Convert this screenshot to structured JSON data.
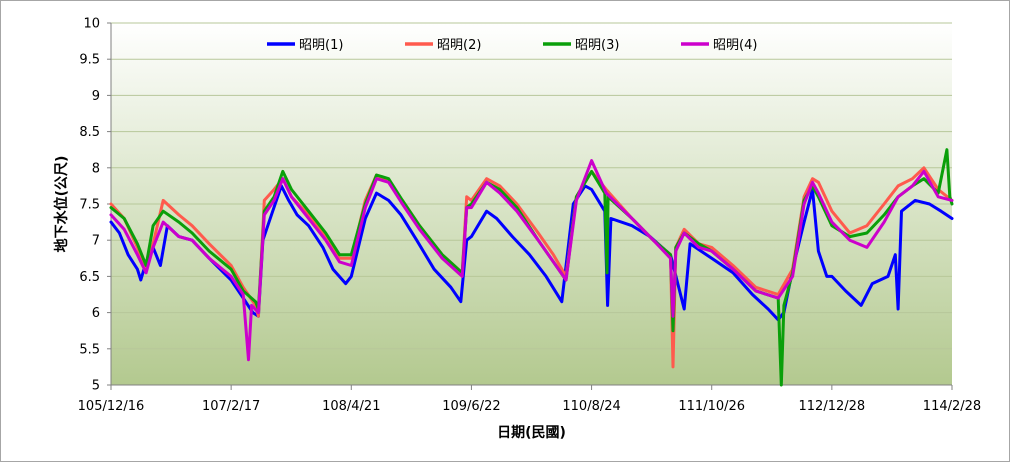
{
  "chart_data": {
    "type": "line",
    "title": "",
    "xlabel": "日期(民國)",
    "ylabel": "地下水位(公尺)",
    "ylim": [
      5,
      10
    ],
    "yticks": [
      5,
      5.5,
      6,
      6.5,
      7,
      7.5,
      8,
      8.5,
      9,
      9.5,
      10
    ],
    "ytick_labels": [
      "5",
      "5.5",
      "6",
      "6.5",
      "7",
      "7.5",
      "8",
      "8.5",
      "9",
      "9.5",
      "10"
    ],
    "x_start": "105/12/16",
    "x_end": "114/2/28",
    "xtick_labels": [
      "105/12/16",
      "107/2/17",
      "108/4/21",
      "109/6/22",
      "110/8/24",
      "111/10/26",
      "112/12/28",
      "114/2/28"
    ],
    "grid": "horizontal",
    "legend_position": "top-center",
    "series": [
      {
        "name": "昭明(1)",
        "color": "#0000ff",
        "points": [
          [
            "105/12/16",
            7.25
          ],
          [
            "106/1/15",
            7.1
          ],
          [
            "106/2/15",
            6.8
          ],
          [
            "106/3/20",
            6.6
          ],
          [
            "106/4/1",
            6.45
          ],
          [
            "106/4/20",
            6.7
          ],
          [
            "106/5/15",
            6.9
          ],
          [
            "106/6/10",
            6.65
          ],
          [
            "106/7/5",
            7.2
          ],
          [
            "106/8/15",
            7.05
          ],
          [
            "106/10/1",
            7.0
          ],
          [
            "106/12/1",
            6.75
          ],
          [
            "107/2/17",
            6.45
          ],
          [
            "107/4/1",
            6.2
          ],
          [
            "107/5/5",
            6.0
          ],
          [
            "107/5/25",
            5.95
          ],
          [
            "107/6/10",
            7.0
          ],
          [
            "107/7/15",
            7.4
          ],
          [
            "107/8/15",
            7.75
          ],
          [
            "107/9/10",
            7.55
          ],
          [
            "107/10/10",
            7.35
          ],
          [
            "107/11/20",
            7.2
          ],
          [
            "108/1/10",
            6.9
          ],
          [
            "108/2/15",
            6.6
          ],
          [
            "108/4/1",
            6.4
          ],
          [
            "108/4/21",
            6.5
          ],
          [
            "108/6/10",
            7.3
          ],
          [
            "108/7/20",
            7.65
          ],
          [
            "108/9/1",
            7.55
          ],
          [
            "108/10/15",
            7.35
          ],
          [
            "108/12/10",
            7.0
          ],
          [
            "109/2/10",
            6.6
          ],
          [
            "109/4/10",
            6.35
          ],
          [
            "109/5/15",
            6.15
          ],
          [
            "109/6/5",
            7.0
          ],
          [
            "109/6/22",
            7.05
          ],
          [
            "109/8/15",
            7.4
          ],
          [
            "109/9/20",
            7.3
          ],
          [
            "109/11/15",
            7.05
          ],
          [
            "110/1/15",
            6.8
          ],
          [
            "110/3/15",
            6.5
          ],
          [
            "110/5/10",
            6.15
          ],
          [
            "110/6/20",
            7.5
          ],
          [
            "110/8/1",
            7.75
          ],
          [
            "110/8/24",
            7.7
          ],
          [
            "110/10/10",
            7.4
          ],
          [
            "110/10/20",
            6.1
          ],
          [
            "110/11/1",
            7.3
          ],
          [
            "111/1/15",
            7.2
          ],
          [
            "111/3/20",
            7.05
          ],
          [
            "111/6/1",
            6.8
          ],
          [
            "111/7/20",
            6.05
          ],
          [
            "111/8/10",
            6.95
          ],
          [
            "111/10/26",
            6.75
          ],
          [
            "112/1/10",
            6.55
          ],
          [
            "112/3/20",
            6.25
          ],
          [
            "112/5/15",
            6.05
          ],
          [
            "112/6/20",
            5.9
          ],
          [
            "112/7/10",
            6.0
          ],
          [
            "112/8/10",
            6.6
          ],
          [
            "112/9/20",
            7.25
          ],
          [
            "112/10/20",
            7.7
          ],
          [
            "112/11/10",
            6.85
          ],
          [
            "112/12/10",
            6.5
          ],
          [
            "112/12/28",
            6.5
          ],
          [
            "113/2/15",
            6.3
          ],
          [
            "113/4/10",
            6.1
          ],
          [
            "113/5/20",
            6.4
          ],
          [
            "113/7/15",
            6.5
          ],
          [
            "113/8/10",
            6.8
          ],
          [
            "113/8/20",
            6.05
          ],
          [
            "113/9/1",
            7.4
          ],
          [
            "113/10/20",
            7.55
          ],
          [
            "113/12/10",
            7.5
          ],
          [
            "114/1/20",
            7.4
          ],
          [
            "114/2/28",
            7.3
          ]
        ]
      },
      {
        "name": "昭明(2)",
        "color": "#ff5a4d",
        "points": [
          [
            "105/12/16",
            7.5
          ],
          [
            "106/2/1",
            7.3
          ],
          [
            "106/3/20",
            6.9
          ],
          [
            "106/4/20",
            6.6
          ],
          [
            "106/5/15",
            6.95
          ],
          [
            "106/6/20",
            7.55
          ],
          [
            "106/8/15",
            7.35
          ],
          [
            "106/10/1",
            7.2
          ],
          [
            "106/12/1",
            6.95
          ],
          [
            "107/2/17",
            6.65
          ],
          [
            "107/4/1",
            6.35
          ],
          [
            "107/5/15",
            6.1
          ],
          [
            "107/5/25",
            5.95
          ],
          [
            "107/6/15",
            7.55
          ],
          [
            "107/7/20",
            7.7
          ],
          [
            "107/8/20",
            7.85
          ],
          [
            "107/9/20",
            7.6
          ],
          [
            "107/11/20",
            7.35
          ],
          [
            "108/1/20",
            7.05
          ],
          [
            "108/3/10",
            6.75
          ],
          [
            "108/4/21",
            6.75
          ],
          [
            "108/6/10",
            7.55
          ],
          [
            "108/7/20",
            7.9
          ],
          [
            "108/9/1",
            7.8
          ],
          [
            "108/10/20",
            7.55
          ],
          [
            "108/12/20",
            7.2
          ],
          [
            "109/3/10",
            6.8
          ],
          [
            "109/5/20",
            6.55
          ],
          [
            "109/6/5",
            7.6
          ],
          [
            "109/6/22",
            7.55
          ],
          [
            "109/8/15",
            7.85
          ],
          [
            "109/10/1",
            7.75
          ],
          [
            "109/12/1",
            7.5
          ],
          [
            "110/2/15",
            7.1
          ],
          [
            "110/4/10",
            6.8
          ],
          [
            "110/5/25",
            6.5
          ],
          [
            "110/7/1",
            7.6
          ],
          [
            "110/8/24",
            7.95
          ],
          [
            "110/10/15",
            7.7
          ],
          [
            "111/1/15",
            7.3
          ],
          [
            "111/4/1",
            7.0
          ],
          [
            "111/6/1",
            6.8
          ],
          [
            "111/6/10",
            5.25
          ],
          [
            "111/6/20",
            6.9
          ],
          [
            "111/7/20",
            7.15
          ],
          [
            "111/9/10",
            6.95
          ],
          [
            "111/10/26",
            6.9
          ],
          [
            "112/1/10",
            6.65
          ],
          [
            "112/4/1",
            6.35
          ],
          [
            "112/6/20",
            6.25
          ],
          [
            "112/8/10",
            6.6
          ],
          [
            "112/9/20",
            7.6
          ],
          [
            "112/10/20",
            7.85
          ],
          [
            "112/11/10",
            7.8
          ],
          [
            "112/12/28",
            7.4
          ],
          [
            "113/3/1",
            7.1
          ],
          [
            "113/5/1",
            7.2
          ],
          [
            "113/7/1",
            7.5
          ],
          [
            "113/8/20",
            7.75
          ],
          [
            "113/10/10",
            7.85
          ],
          [
            "113/11/20",
            8.0
          ],
          [
            "114/1/10",
            7.7
          ],
          [
            "114/2/28",
            7.55
          ]
        ]
      },
      {
        "name": "昭明(3)",
        "color": "#0a9f0a",
        "points": [
          [
            "105/12/16",
            7.45
          ],
          [
            "106/2/1",
            7.3
          ],
          [
            "106/3/20",
            6.95
          ],
          [
            "106/4/20",
            6.65
          ],
          [
            "106/5/15",
            7.2
          ],
          [
            "106/6/20",
            7.4
          ],
          [
            "106/8/15",
            7.25
          ],
          [
            "106/10/1",
            7.1
          ],
          [
            "106/12/1",
            6.85
          ],
          [
            "107/2/17",
            6.6
          ],
          [
            "107/4/1",
            6.3
          ],
          [
            "107/5/15",
            6.15
          ],
          [
            "107/5/25",
            6.05
          ],
          [
            "107/6/15",
            7.4
          ],
          [
            "107/7/20",
            7.6
          ],
          [
            "107/8/20",
            7.95
          ],
          [
            "107/9/20",
            7.7
          ],
          [
            "107/11/20",
            7.4
          ],
          [
            "108/1/20",
            7.1
          ],
          [
            "108/3/10",
            6.8
          ],
          [
            "108/4/21",
            6.8
          ],
          [
            "108/6/10",
            7.5
          ],
          [
            "108/7/20",
            7.9
          ],
          [
            "108/9/1",
            7.85
          ],
          [
            "108/10/20",
            7.55
          ],
          [
            "108/12/20",
            7.2
          ],
          [
            "109/3/10",
            6.8
          ],
          [
            "109/5/20",
            6.55
          ],
          [
            "109/6/5",
            7.45
          ],
          [
            "109/6/22",
            7.5
          ],
          [
            "109/8/15",
            7.8
          ],
          [
            "109/10/1",
            7.7
          ],
          [
            "109/12/1",
            7.45
          ],
          [
            "110/2/15",
            7.0
          ],
          [
            "110/4/10",
            6.7
          ],
          [
            "110/5/25",
            6.45
          ],
          [
            "110/7/1",
            7.6
          ],
          [
            "110/8/24",
            7.95
          ],
          [
            "110/10/10",
            7.65
          ],
          [
            "110/10/18",
            6.55
          ],
          [
            "110/10/22",
            7.6
          ],
          [
            "111/1/15",
            7.3
          ],
          [
            "111/4/1",
            7.0
          ],
          [
            "111/6/1",
            6.8
          ],
          [
            "111/6/10",
            5.75
          ],
          [
            "111/6/20",
            6.9
          ],
          [
            "111/7/20",
            7.1
          ],
          [
            "111/9/10",
            6.95
          ],
          [
            "111/10/26",
            6.85
          ],
          [
            "112/1/10",
            6.6
          ],
          [
            "112/4/1",
            6.3
          ],
          [
            "112/6/20",
            6.2
          ],
          [
            "112/7/1",
            5.0
          ],
          [
            "112/7/10",
            6.1
          ],
          [
            "112/8/10",
            6.55
          ],
          [
            "112/9/20",
            7.55
          ],
          [
            "112/10/20",
            7.75
          ],
          [
            "112/11/10",
            7.6
          ],
          [
            "112/12/28",
            7.2
          ],
          [
            "113/3/1",
            7.05
          ],
          [
            "113/5/1",
            7.1
          ],
          [
            "113/7/1",
            7.35
          ],
          [
            "113/8/20",
            7.6
          ],
          [
            "113/10/10",
            7.75
          ],
          [
            "113/11/20",
            7.85
          ],
          [
            "114/1/10",
            7.65
          ],
          [
            "114/2/10",
            8.25
          ],
          [
            "114/2/20",
            7.6
          ],
          [
            "114/2/28",
            7.5
          ]
        ]
      },
      {
        "name": "昭明(4)",
        "color": "#cc00cc",
        "points": [
          [
            "105/12/16",
            7.35
          ],
          [
            "106/2/1",
            7.15
          ],
          [
            "106/3/20",
            6.8
          ],
          [
            "106/4/20",
            6.55
          ],
          [
            "106/5/15",
            6.9
          ],
          [
            "106/6/20",
            7.25
          ],
          [
            "106/8/15",
            7.05
          ],
          [
            "106/10/1",
            7.0
          ],
          [
            "106/12/1",
            6.75
          ],
          [
            "107/2/17",
            6.5
          ],
          [
            "107/4/1",
            6.25
          ],
          [
            "107/4/20",
            5.35
          ],
          [
            "107/5/1",
            6.1
          ],
          [
            "107/5/25",
            6.0
          ],
          [
            "107/6/15",
            7.35
          ],
          [
            "107/7/20",
            7.55
          ],
          [
            "107/8/20",
            7.85
          ],
          [
            "107/9/20",
            7.6
          ],
          [
            "107/11/20",
            7.3
          ],
          [
            "108/1/20",
            7.0
          ],
          [
            "108/3/10",
            6.7
          ],
          [
            "108/4/21",
            6.65
          ],
          [
            "108/6/10",
            7.45
          ],
          [
            "108/7/20",
            7.85
          ],
          [
            "108/9/1",
            7.8
          ],
          [
            "108/10/20",
            7.5
          ],
          [
            "108/12/20",
            7.15
          ],
          [
            "109/3/10",
            6.75
          ],
          [
            "109/5/20",
            6.5
          ],
          [
            "109/6/5",
            7.45
          ],
          [
            "109/6/22",
            7.45
          ],
          [
            "109/8/15",
            7.8
          ],
          [
            "109/10/1",
            7.65
          ],
          [
            "109/12/1",
            7.4
          ],
          [
            "110/2/15",
            7.0
          ],
          [
            "110/4/10",
            6.7
          ],
          [
            "110/5/25",
            6.45
          ],
          [
            "110/7/1",
            7.55
          ],
          [
            "110/8/24",
            8.1
          ],
          [
            "110/10/15",
            7.65
          ],
          [
            "111/1/15",
            7.3
          ],
          [
            "111/4/1",
            7.0
          ],
          [
            "111/6/1",
            6.75
          ],
          [
            "111/6/10",
            5.95
          ],
          [
            "111/6/20",
            6.85
          ],
          [
            "111/7/20",
            7.1
          ],
          [
            "111/9/10",
            6.9
          ],
          [
            "111/10/26",
            6.85
          ],
          [
            "112/1/10",
            6.6
          ],
          [
            "112/4/1",
            6.3
          ],
          [
            "112/6/20",
            6.2
          ],
          [
            "112/8/10",
            6.5
          ],
          [
            "112/9/20",
            7.5
          ],
          [
            "112/10/20",
            7.8
          ],
          [
            "112/11/10",
            7.65
          ],
          [
            "112/12/28",
            7.25
          ],
          [
            "113/3/1",
            7.0
          ],
          [
            "113/5/1",
            6.9
          ],
          [
            "113/7/1",
            7.25
          ],
          [
            "113/8/20",
            7.6
          ],
          [
            "113/10/10",
            7.75
          ],
          [
            "113/11/20",
            7.95
          ],
          [
            "114/1/10",
            7.6
          ],
          [
            "114/2/28",
            7.55
          ]
        ]
      }
    ]
  }
}
